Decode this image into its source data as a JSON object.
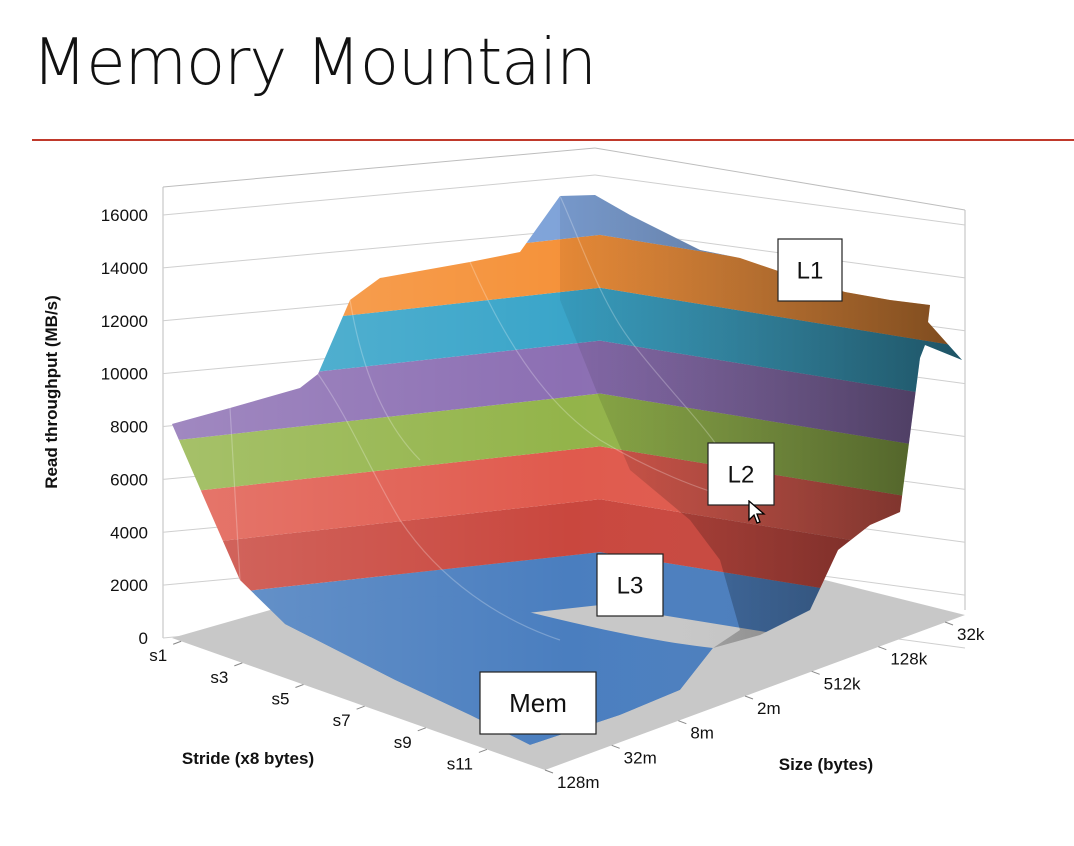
{
  "slide": {
    "title": "Memory Mountain"
  },
  "colors": {
    "title_rule": "#c0392b",
    "band_mem": "#4a7ebf",
    "band_2000": "#c9473e",
    "band_4000": "#e05a4d",
    "band_6000": "#93b44a",
    "band_8000": "#8c6fb3",
    "band_10000": "#3aa5c9",
    "band_12000": "#f5923a",
    "band_14000": "#7fa3d9",
    "floor": "#c8c8c8"
  },
  "chart_data": {
    "type": "surface3d",
    "title": "",
    "zlabel": "Read throughput (MB/s)",
    "xlabel": "Stride (x8 bytes)",
    "ylabel": "Size (bytes)",
    "zlim": [
      0,
      16000
    ],
    "z_ticks": [
      "0",
      "2000",
      "4000",
      "6000",
      "8000",
      "10000",
      "12000",
      "14000",
      "16000"
    ],
    "stride_ticks": [
      "s1",
      "s3",
      "s5",
      "s7",
      "s9",
      "s11"
    ],
    "size_ticks": [
      "32k",
      "128k",
      "512k",
      "2m",
      "8m",
      "32m",
      "128m"
    ],
    "band_values": [
      0,
      2000,
      4000,
      6000,
      8000,
      10000,
      12000,
      14000,
      16000
    ],
    "annotations": [
      {
        "label": "L1"
      },
      {
        "label": "L2"
      },
      {
        "label": "L3"
      },
      {
        "label": "Mem"
      }
    ]
  }
}
